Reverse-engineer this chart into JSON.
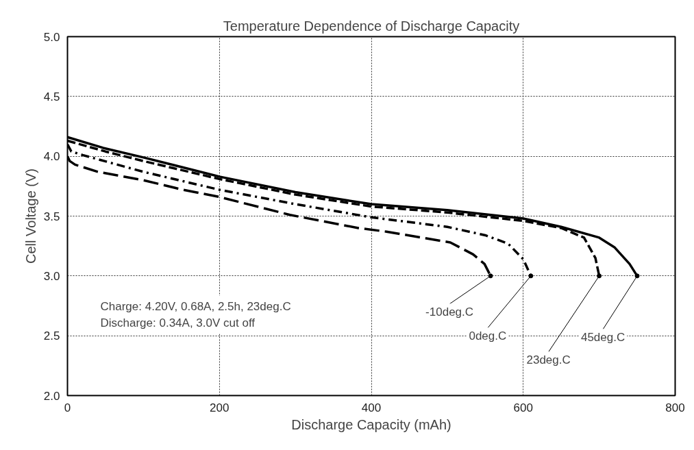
{
  "chart_data": {
    "type": "line",
    "title": "Temperature Dependence of Discharge Capacity",
    "xlabel": "Discharge Capacity (mAh)",
    "ylabel": "Cell Voltage (V)",
    "xlim": [
      0,
      800
    ],
    "xticks": [
      0,
      200,
      400,
      600,
      800
    ],
    "ylim": [
      2.0,
      5.0
    ],
    "yticks": [
      {
        "value": 2.0,
        "label": "2.0"
      },
      {
        "value": 2.5,
        "label": "2.5"
      },
      {
        "value": 3.0,
        "label": "3.0"
      },
      {
        "value": 3.5,
        "label": "3.5"
      },
      {
        "value": 4.0,
        "label": "4.0"
      },
      {
        "value": 4.5,
        "label": "4.5"
      },
      {
        "value": 5.0,
        "label": "5.0"
      }
    ],
    "grid": true,
    "series": [
      {
        "name": "-10deg.C",
        "color": "#000000",
        "line_style": "longdash",
        "x": [
          0,
          3,
          10,
          20,
          40,
          100,
          152,
          200,
          293,
          383,
          420,
          504,
          534,
          549,
          557
        ],
        "values": [
          4.0,
          3.96,
          3.93,
          3.91,
          3.87,
          3.8,
          3.72,
          3.66,
          3.51,
          3.4,
          3.37,
          3.28,
          3.18,
          3.1,
          3.0
        ]
      },
      {
        "name": "0deg.C",
        "color": "#000000",
        "line_style": "dashdot",
        "x": [
          0,
          5,
          20,
          100,
          200,
          300,
          400,
          500,
          550,
          580,
          600,
          610
        ],
        "values": [
          4.1,
          4.04,
          4.01,
          3.87,
          3.72,
          3.6,
          3.49,
          3.41,
          3.34,
          3.27,
          3.14,
          3.0
        ]
      },
      {
        "name": "23deg.C",
        "color": "#000000",
        "line_style": "dashed",
        "x": [
          0,
          50,
          100,
          200,
          300,
          400,
          500,
          600,
          650,
          680,
          695,
          700
        ],
        "values": [
          4.13,
          4.04,
          3.96,
          3.81,
          3.68,
          3.58,
          3.53,
          3.46,
          3.4,
          3.32,
          3.15,
          3.0
        ]
      },
      {
        "name": "45deg.C",
        "color": "#000000",
        "line_style": "solid",
        "x": [
          0,
          47,
          100,
          200,
          300,
          400,
          500,
          600,
          650,
          700,
          720,
          740,
          750
        ],
        "values": [
          4.16,
          4.07,
          3.99,
          3.83,
          3.7,
          3.6,
          3.55,
          3.48,
          3.41,
          3.32,
          3.24,
          3.1,
          3.0
        ]
      }
    ],
    "annotations": [
      "Charge: 4.20V, 0.68A, 2.5h, 23deg.C\nDischarge: 0.34A, 3.0V cut off"
    ]
  }
}
